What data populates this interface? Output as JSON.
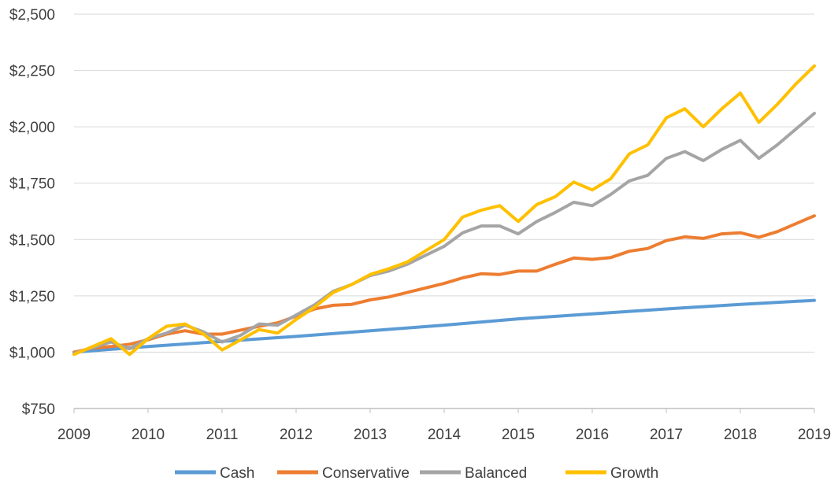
{
  "chart_data": {
    "type": "line",
    "title": "",
    "xlabel": "",
    "ylabel": "",
    "x_ticks": [
      "2009",
      "2010",
      "2011",
      "2012",
      "2013",
      "2014",
      "2015",
      "2016",
      "2017",
      "2018",
      "2019"
    ],
    "y_ticks": [
      "$750",
      "$1,000",
      "$1,250",
      "$1,500",
      "$1,750",
      "$2,000",
      "$2,250",
      "$2,500"
    ],
    "y_tick_values": [
      750,
      1000,
      1250,
      1500,
      1750,
      2000,
      2250,
      2500
    ],
    "xlim": [
      2009,
      2019
    ],
    "ylim": [
      750,
      2500
    ],
    "grid": "horizontal",
    "legend_position": "bottom",
    "series": [
      {
        "name": "Cash",
        "color": "#5B9BD5",
        "x": [
          2009,
          2010,
          2011,
          2012,
          2013,
          2014,
          2015,
          2016,
          2017,
          2018,
          2019
        ],
        "values": [
          1000,
          1025,
          1048,
          1070,
          1095,
          1120,
          1148,
          1170,
          1192,
          1212,
          1230
        ]
      },
      {
        "name": "Conservative",
        "color": "#ED7D31",
        "x": [
          2009,
          2009.25,
          2009.5,
          2009.75,
          2010,
          2010.25,
          2010.5,
          2010.75,
          2011,
          2011.25,
          2011.5,
          2011.75,
          2012,
          2012.25,
          2012.5,
          2012.75,
          2013,
          2013.25,
          2013.5,
          2013.75,
          2014,
          2014.25,
          2014.5,
          2014.75,
          2015,
          2015.25,
          2015.5,
          2015.75,
          2016,
          2016.25,
          2016.5,
          2016.75,
          2017,
          2017.25,
          2017.5,
          2017.75,
          2018,
          2018.25,
          2018.5,
          2018.75,
          2019
        ],
        "values": [
          1000,
          1018,
          1025,
          1035,
          1055,
          1080,
          1095,
          1080,
          1080,
          1098,
          1115,
          1130,
          1160,
          1192,
          1208,
          1212,
          1232,
          1245,
          1265,
          1285,
          1305,
          1330,
          1348,
          1345,
          1360,
          1360,
          1390,
          1418,
          1412,
          1420,
          1448,
          1460,
          1495,
          1512,
          1505,
          1525,
          1530,
          1510,
          1535,
          1570,
          1605
        ]
      },
      {
        "name": "Balanced",
        "color": "#A5A5A5",
        "x": [
          2009,
          2009.25,
          2009.5,
          2009.75,
          2010,
          2010.25,
          2010.5,
          2010.75,
          2011,
          2011.25,
          2011.5,
          2011.75,
          2012,
          2012.25,
          2012.5,
          2012.75,
          2013,
          2013.25,
          2013.5,
          2013.75,
          2014,
          2014.25,
          2014.5,
          2014.75,
          2015,
          2015.25,
          2015.5,
          2015.75,
          2016,
          2016.25,
          2016.5,
          2016.75,
          2017,
          2017.25,
          2017.5,
          2017.75,
          2018,
          2018.25,
          2018.5,
          2018.75,
          2019
        ],
        "values": [
          995,
          1020,
          1045,
          1015,
          1060,
          1085,
          1120,
          1090,
          1045,
          1075,
          1125,
          1120,
          1165,
          1210,
          1270,
          1300,
          1340,
          1360,
          1390,
          1430,
          1470,
          1530,
          1560,
          1560,
          1525,
          1580,
          1620,
          1665,
          1650,
          1700,
          1760,
          1785,
          1860,
          1890,
          1850,
          1900,
          1940,
          1860,
          1920,
          1990,
          2060
        ]
      },
      {
        "name": "Growth",
        "color": "#FFC000",
        "x": [
          2009,
          2009.25,
          2009.5,
          2009.75,
          2010,
          2010.25,
          2010.5,
          2010.75,
          2011,
          2011.25,
          2011.5,
          2011.75,
          2012,
          2012.25,
          2012.5,
          2012.75,
          2013,
          2013.25,
          2013.5,
          2013.75,
          2014,
          2014.25,
          2014.5,
          2014.75,
          2015,
          2015.25,
          2015.5,
          2015.75,
          2016,
          2016.25,
          2016.5,
          2016.75,
          2017,
          2017.25,
          2017.5,
          2017.75,
          2018,
          2018.25,
          2018.5,
          2018.75,
          2019
        ],
        "values": [
          990,
          1025,
          1060,
          990,
          1060,
          1115,
          1125,
          1080,
          1010,
          1055,
          1100,
          1085,
          1145,
          1200,
          1265,
          1300,
          1345,
          1370,
          1400,
          1450,
          1500,
          1600,
          1630,
          1650,
          1580,
          1655,
          1690,
          1755,
          1720,
          1770,
          1880,
          1920,
          2040,
          2080,
          2000,
          2080,
          2150,
          2020,
          2100,
          2190,
          2270
        ]
      }
    ]
  }
}
